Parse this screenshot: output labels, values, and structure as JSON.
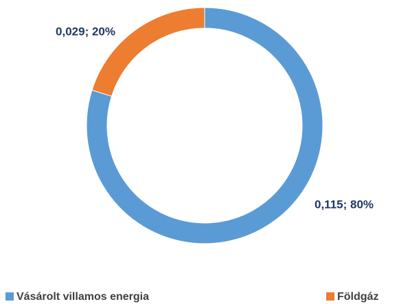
{
  "chart_data": {
    "type": "donut",
    "categories": [
      "Vásárolt villamos energia",
      "Földgáz"
    ],
    "values": [
      0.115,
      0.029
    ],
    "value_labels": [
      "0,115; 80%",
      "0,029; 20%"
    ],
    "colors": [
      "#5b9bd5",
      "#ed7d31"
    ]
  }
}
